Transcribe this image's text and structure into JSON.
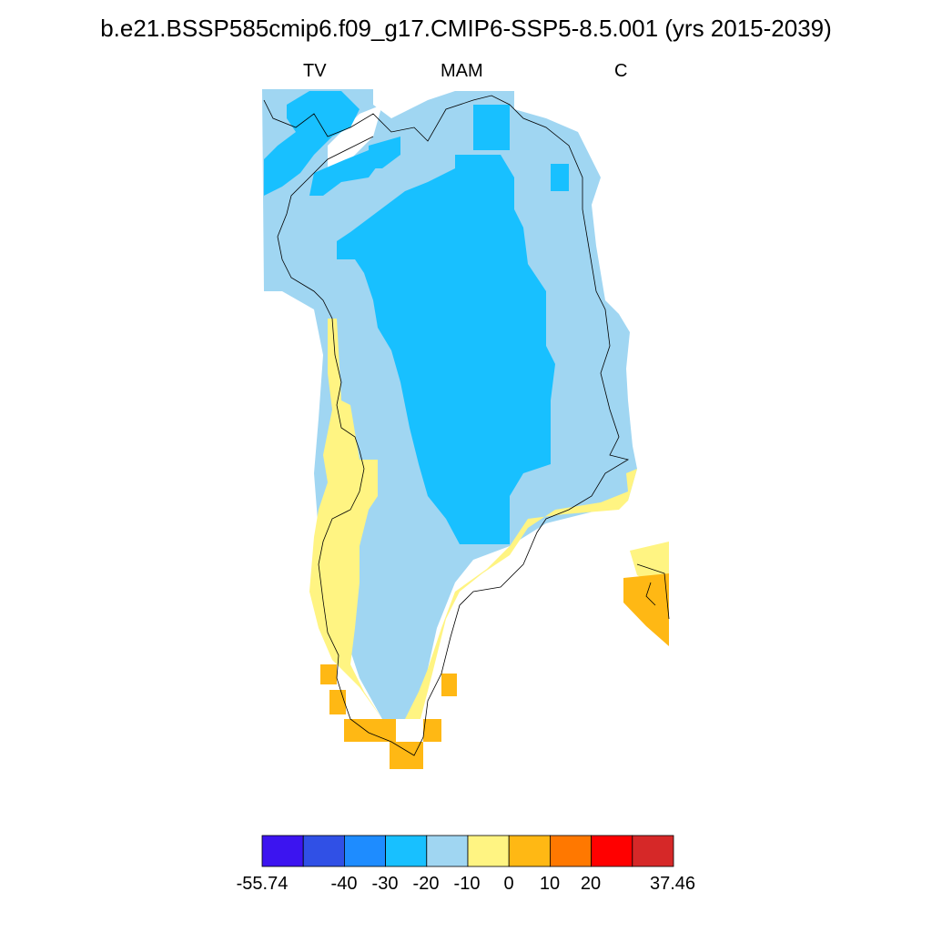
{
  "title": "b.e21.BSSP585cmip6.f09_g17.CMIP6-SSP5-8.5.001 (yrs 2015-2039)",
  "subtitle_left": "TV",
  "subtitle_center": "MAM",
  "subtitle_right": "C",
  "map": {
    "region": "Greenland",
    "coastline_color": "#000000",
    "land_outline": "thin black coastline"
  },
  "colorbar": {
    "colors": [
      "#3c14f0",
      "#3050e6",
      "#1e8cff",
      "#18c0ff",
      "#a0d6f2",
      "#fff482",
      "#ffb814",
      "#ff7800",
      "#ff0000",
      "#d62828"
    ],
    "labels": [
      "-55.74",
      "-40",
      "-30",
      "-20",
      "-10",
      "0",
      "10",
      "20",
      "37.46"
    ]
  }
}
